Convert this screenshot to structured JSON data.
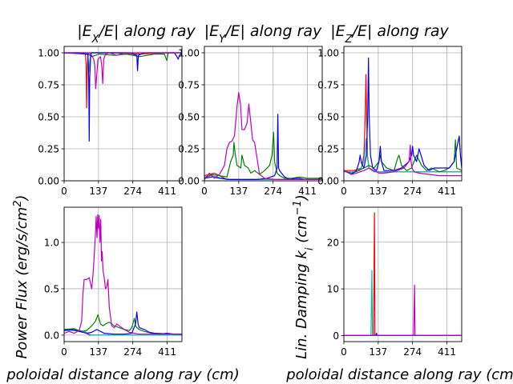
{
  "figure": {
    "titles": [
      "|E_X/E| along ray",
      "|E_Y/E| along ray",
      "|E_Z/E| along ray"
    ],
    "colors": {
      "red": "#ff0000",
      "cyan": "#00bfbf",
      "green": "#008000",
      "blue": "#0000ff",
      "magenta": "#bf00bf"
    }
  },
  "chart_data": [
    {
      "type": "line",
      "title": "|E_X/E| along ray",
      "xlim": [
        0,
        470
      ],
      "ylim": [
        0,
        1.05
      ],
      "xticks": [
        "0",
        "137",
        "274",
        "411"
      ],
      "yticks": [
        "0.00",
        "0.25",
        "0.50",
        "0.75",
        "1.00"
      ],
      "grid": true,
      "series": [
        {
          "color": "red",
          "x": [
            0,
            60,
            85,
            88,
            90,
            93,
            96,
            100,
            110,
            130,
            200,
            300,
            400,
            470
          ],
          "y": [
            1,
            1,
            0.99,
            0.9,
            0.57,
            0.92,
            0.99,
            1,
            1,
            1,
            1,
            0.99,
            1,
            1
          ]
        },
        {
          "color": "cyan",
          "x": [
            0,
            80,
            95,
            99,
            102,
            106,
            110,
            140,
            250,
            470
          ],
          "y": [
            1,
            1,
            0.98,
            0.85,
            0.93,
            0.98,
            1,
            1,
            1,
            1
          ]
        },
        {
          "color": "green",
          "x": [
            0,
            90,
            110,
            140,
            200,
            250,
            300,
            360,
            400,
            410,
            414,
            418,
            430,
            470
          ],
          "y": [
            1,
            1,
            0.97,
            0.99,
            0.98,
            0.99,
            0.97,
            0.99,
            0.99,
            0.94,
            0.99,
            1,
            1,
            1
          ]
        },
        {
          "color": "blue",
          "x": [
            0,
            95,
            98,
            100,
            102,
            106,
            110,
            150,
            200,
            260,
            290,
            293,
            296,
            320,
            350,
            380,
            440,
            450,
            455,
            460,
            470
          ],
          "y": [
            1,
            0.99,
            0.8,
            0.31,
            0.8,
            0.99,
            1,
            1,
            1,
            1,
            0.98,
            0.86,
            0.98,
            1,
            1,
            1,
            1,
            0.97,
            0.95,
            0.98,
            1
          ]
        },
        {
          "color": "magenta",
          "x": [
            0,
            100,
            110,
            118,
            122,
            126,
            135,
            145,
            150,
            154,
            158,
            165,
            180,
            210,
            240,
            270,
            470
          ],
          "y": [
            1,
            1,
            0.98,
            0.95,
            0.9,
            0.72,
            0.95,
            0.97,
            0.9,
            0.76,
            0.95,
            0.99,
            1,
            0.98,
            1,
            1,
            1
          ]
        }
      ]
    },
    {
      "type": "line",
      "title": "|E_Y/E| along ray",
      "xlim": [
        0,
        470
      ],
      "ylim": [
        0,
        1.05
      ],
      "xticks": [
        "0",
        "137",
        "274",
        "411"
      ],
      "yticks": [
        "0.00",
        "0.25",
        "0.50",
        "0.75",
        "1.00"
      ],
      "grid": true,
      "series": [
        {
          "color": "red",
          "x": [
            0,
            20,
            40,
            60,
            80,
            90,
            470
          ],
          "y": [
            0.04,
            0.05,
            0.06,
            0.04,
            0.02,
            0.01,
            0.01
          ]
        },
        {
          "color": "cyan",
          "x": [
            0,
            30,
            50,
            70,
            90,
            100,
            470
          ],
          "y": [
            0.03,
            0.04,
            0.03,
            0.02,
            0.01,
            0.01,
            0.01
          ]
        },
        {
          "color": "green",
          "x": [
            0,
            30,
            60,
            90,
            105,
            115,
            118,
            122,
            130,
            145,
            150,
            160,
            175,
            185,
            200,
            220,
            240,
            260,
            270,
            276,
            280,
            290,
            300,
            320,
            350,
            380,
            410,
            440,
            470
          ],
          "y": [
            0.02,
            0.05,
            0.04,
            0.03,
            0.15,
            0.2,
            0.3,
            0.22,
            0.12,
            0.1,
            0.2,
            0.12,
            0.1,
            0.06,
            0.08,
            0.05,
            0.08,
            0.12,
            0.2,
            0.38,
            0.15,
            0.06,
            0.04,
            0.02,
            0.02,
            0.03,
            0.02,
            0.02,
            0.02
          ]
        },
        {
          "color": "blue",
          "x": [
            0,
            30,
            60,
            100,
            130,
            170,
            210,
            250,
            280,
            290,
            293,
            296,
            300,
            320,
            340,
            360,
            380,
            400,
            420,
            470
          ],
          "y": [
            0.02,
            0.03,
            0.02,
            0.01,
            0.01,
            0.01,
            0.01,
            0.02,
            0.04,
            0.1,
            0.52,
            0.1,
            0.08,
            0.03,
            0.01,
            0.02,
            0.02,
            0.01,
            0.01,
            0.01
          ]
        },
        {
          "color": "magenta",
          "x": [
            0,
            20,
            40,
            60,
            80,
            90,
            100,
            110,
            120,
            130,
            137,
            144,
            150,
            160,
            170,
            177,
            184,
            192,
            200,
            208,
            220,
            240,
            280,
            320,
            360,
            400,
            440,
            470
          ],
          "y": [
            0.01,
            0.06,
            0.02,
            0.05,
            0.12,
            0.25,
            0.3,
            0.31,
            0.35,
            0.58,
            0.69,
            0.6,
            0.4,
            0.4,
            0.45,
            0.6,
            0.48,
            0.32,
            0.3,
            0.2,
            0.05,
            0.02,
            0.01,
            0.01,
            0.01,
            0.01,
            0.01,
            0.01
          ]
        }
      ]
    },
    {
      "type": "line",
      "title": "|E_Z/E| along ray",
      "xlim": [
        0,
        470
      ],
      "ylim": [
        0,
        1.05
      ],
      "xticks": [
        "0",
        "137",
        "274",
        "411"
      ],
      "yticks": [
        "0.00",
        "0.25",
        "0.50",
        "0.75",
        "1.00"
      ],
      "grid": true,
      "series": [
        {
          "color": "red",
          "x": [
            0,
            40,
            70,
            80,
            85,
            88,
            91,
            94,
            100,
            120,
            470
          ],
          "y": [
            0.08,
            0.08,
            0.1,
            0.2,
            0.5,
            0.83,
            0.5,
            0.2,
            0.1,
            0.07,
            0.07
          ]
        },
        {
          "color": "cyan",
          "x": [
            0,
            50,
            70,
            80,
            85,
            89,
            93,
            100,
            120,
            470
          ],
          "y": [
            0.07,
            0.07,
            0.1,
            0.15,
            0.25,
            0.33,
            0.2,
            0.1,
            0.07,
            0.07
          ]
        },
        {
          "color": "green",
          "x": [
            0,
            30,
            60,
            80,
            100,
            120,
            140,
            145,
            150,
            170,
            200,
            215,
            220,
            230,
            250,
            270,
            290,
            310,
            330,
            350,
            380,
            400,
            420,
            440,
            445,
            450,
            470
          ],
          "y": [
            0.08,
            0.06,
            0.08,
            0.1,
            0.12,
            0.1,
            0.15,
            0.2,
            0.15,
            0.1,
            0.08,
            0.18,
            0.2,
            0.12,
            0.08,
            0.1,
            0.2,
            0.12,
            0.08,
            0.1,
            0.07,
            0.08,
            0.1,
            0.15,
            0.32,
            0.1,
            0.08
          ]
        },
        {
          "color": "blue",
          "x": [
            0,
            30,
            50,
            60,
            65,
            70,
            80,
            90,
            95,
            98,
            101,
            106,
            115,
            130,
            140,
            145,
            150,
            160,
            200,
            230,
            260,
            270,
            274,
            278,
            290,
            300,
            320,
            340,
            360,
            380,
            420,
            440,
            450,
            460,
            465,
            470
          ],
          "y": [
            0.08,
            0.05,
            0.08,
            0.14,
            0.2,
            0.14,
            0.1,
            0.2,
            0.5,
            0.96,
            0.5,
            0.2,
            0.1,
            0.08,
            0.15,
            0.27,
            0.15,
            0.08,
            0.08,
            0.1,
            0.15,
            0.2,
            0.27,
            0.2,
            0.15,
            0.25,
            0.12,
            0.08,
            0.1,
            0.1,
            0.1,
            0.15,
            0.25,
            0.35,
            0.2,
            0.1
          ]
        },
        {
          "color": "magenta",
          "x": [
            0,
            30,
            50,
            80,
            100,
            120,
            140,
            160,
            200,
            240,
            260,
            265,
            268,
            272,
            280,
            300,
            340,
            380,
            420,
            470
          ],
          "y": [
            0.08,
            0.05,
            0.06,
            0.08,
            0.1,
            0.08,
            0.06,
            0.06,
            0.07,
            0.1,
            0.15,
            0.28,
            0.15,
            0.1,
            0.07,
            0.06,
            0.05,
            0.04,
            0.04,
            0.04
          ]
        }
      ]
    },
    {
      "type": "line",
      "xlabel": "poloidal distance along ray  (cm)",
      "ylabel": "Power Flux (erg/s/cm^2)",
      "xlim": [
        0,
        470
      ],
      "ylim": [
        -0.07,
        1.38
      ],
      "xticks": [
        "0",
        "137",
        "274",
        "411"
      ],
      "yticks": [
        "0.0",
        "0.5",
        "1.0"
      ],
      "grid": true,
      "series": [
        {
          "color": "red",
          "x": [
            0,
            30,
            60,
            80,
            90,
            95,
            100,
            470
          ],
          "y": [
            0.06,
            0.06,
            0.05,
            0.04,
            0.02,
            0.01,
            0,
            0
          ]
        },
        {
          "color": "cyan",
          "x": [
            0,
            50,
            80,
            100,
            110,
            470
          ],
          "y": [
            0.05,
            0.05,
            0.04,
            0.01,
            0,
            0
          ]
        },
        {
          "color": "green",
          "x": [
            0,
            40,
            70,
            90,
            110,
            125,
            135,
            140,
            145,
            155,
            165,
            180,
            200,
            220,
            240,
            260,
            270,
            280,
            285,
            290,
            300,
            320,
            350,
            380,
            410,
            440,
            470
          ],
          "y": [
            0.06,
            0.07,
            0.04,
            0.05,
            0.1,
            0.15,
            0.22,
            0.17,
            0.12,
            0.1,
            0.12,
            0.14,
            0.1,
            0.08,
            0.06,
            0.05,
            0.08,
            0.18,
            0.1,
            0.08,
            0.06,
            0.04,
            0.02,
            0.02,
            0.01,
            0.01,
            0.01
          ]
        },
        {
          "color": "blue",
          "x": [
            0,
            30,
            60,
            90,
            110,
            130,
            160,
            200,
            240,
            270,
            285,
            290,
            295,
            300,
            320,
            340,
            380,
            410,
            440,
            470
          ],
          "y": [
            0.05,
            0.06,
            0.04,
            0.02,
            0.03,
            0.06,
            0.02,
            0.01,
            0.01,
            0.02,
            0.12,
            0.25,
            0.12,
            0.08,
            0.06,
            0.03,
            0.01,
            0.02,
            0.01,
            0.01
          ]
        },
        {
          "color": "magenta",
          "x": [
            0,
            20,
            40,
            60,
            70,
            75,
            80,
            90,
            100,
            110,
            115,
            120,
            125,
            128,
            131,
            134,
            137,
            140,
            143,
            146,
            149,
            152,
            155,
            160,
            165,
            170,
            175,
            180,
            190,
            200,
            210,
            220,
            240,
            260,
            280,
            300,
            340,
            380,
            420,
            470
          ],
          "y": [
            0.02,
            0.04,
            0.02,
            0.05,
            0.15,
            0.45,
            0.6,
            0.6,
            0.62,
            0.5,
            0.65,
            0.85,
            1.1,
            1.28,
            1.05,
            1.3,
            1.15,
            1.29,
            1.0,
            1.25,
            0.8,
            0.9,
            0.7,
            0.62,
            0.5,
            0.52,
            0.6,
            0.3,
            0.1,
            0.08,
            0.12,
            0.1,
            0.06,
            0.03,
            0.02,
            0.01,
            0.01,
            0.01,
            0.01,
            0.01
          ]
        }
      ]
    },
    {
      "type": "line",
      "xlabel": "poloidal distance along ray  (cm)",
      "ylabel": "Lin. Damping k_i (cm^-1)",
      "xlim": [
        0,
        470
      ],
      "ylim": [
        -1.3,
        27.5
      ],
      "xticks": [
        "0",
        "137",
        "274",
        "411"
      ],
      "yticks": [
        "0",
        "10",
        "20"
      ],
      "grid": true,
      "series": [
        {
          "color": "red",
          "x": [
            0,
            118,
            120,
            122,
            124,
            470
          ],
          "y": [
            0,
            0,
            10,
            26.3,
            0,
            0
          ]
        },
        {
          "color": "cyan",
          "x": [
            0,
            108,
            110,
            112,
            114,
            470
          ],
          "y": [
            0,
            0,
            7,
            14,
            0,
            0
          ]
        },
        {
          "color": "green",
          "x": [
            0,
            470
          ],
          "y": [
            0,
            0
          ]
        },
        {
          "color": "blue",
          "x": [
            0,
            128,
            130,
            132,
            470
          ],
          "y": [
            0,
            0,
            0.5,
            0,
            0
          ]
        },
        {
          "color": "magenta",
          "x": [
            0,
            278,
            280,
            282,
            284,
            470
          ],
          "y": [
            0,
            0,
            5,
            10.8,
            0,
            0
          ]
        }
      ]
    }
  ]
}
